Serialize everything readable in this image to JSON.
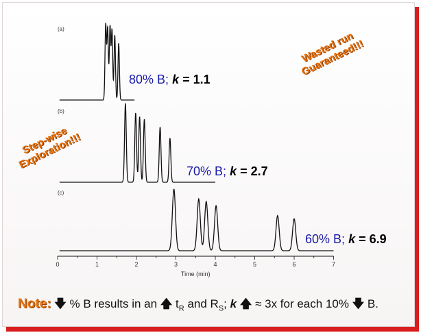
{
  "chart_data": {
    "type": "line",
    "xlabel": "Time (min)",
    "xlim": [
      0,
      7
    ],
    "xticks": [
      0,
      1,
      2,
      3,
      4,
      5,
      6,
      7
    ],
    "panels": [
      {
        "label": "(a)",
        "condition_pct": "80% B;",
        "k_symbol": "k",
        "k_value": "= 1.1",
        "peaks": [
          {
            "t": 1.22,
            "h": 1.0
          },
          {
            "t": 1.27,
            "h": 0.95
          },
          {
            "t": 1.33,
            "h": 0.97
          },
          {
            "t": 1.38,
            "h": 0.92
          },
          {
            "t": 1.45,
            "h": 0.86
          },
          {
            "t": 1.55,
            "h": 0.75
          }
        ],
        "width": 0.018
      },
      {
        "label": "(b)",
        "condition_pct": "70% B;",
        "k_symbol": "k",
        "k_value": "= 2.7",
        "peaks": [
          {
            "t": 1.72,
            "h": 1.0
          },
          {
            "t": 1.98,
            "h": 0.88
          },
          {
            "t": 2.08,
            "h": 0.83
          },
          {
            "t": 2.2,
            "h": 0.8
          },
          {
            "t": 2.6,
            "h": 0.7
          },
          {
            "t": 2.85,
            "h": 0.56
          }
        ],
        "width": 0.022
      },
      {
        "label": "(c)",
        "condition_pct": "60% B;",
        "k_symbol": "k",
        "k_value": "= 6.9",
        "peaks": [
          {
            "t": 2.95,
            "h": 1.0
          },
          {
            "t": 3.58,
            "h": 0.84
          },
          {
            "t": 3.77,
            "h": 0.8
          },
          {
            "t": 4.02,
            "h": 0.73
          },
          {
            "t": 5.58,
            "h": 0.57
          },
          {
            "t": 6.0,
            "h": 0.52
          }
        ],
        "width": 0.04
      }
    ]
  },
  "annotations": {
    "wasted_line1": "Wasted run",
    "wasted_line2": "Guaranteed!!!",
    "stepwise_line1": "Step-wise",
    "stepwise_line2": "Exploration!!!"
  },
  "note": {
    "label": "Note:",
    "text1": "% B results in an",
    "text2": "t",
    "sub_r": "R",
    "text3": "and R",
    "sub_s": "S",
    "text4": ";",
    "k": "k",
    "text5": "≈ 3x for each 10%",
    "text6": "B."
  },
  "colors": {
    "condition_text": "#1a1aa8",
    "stamp_orange": "#e8730c",
    "frame_shadow": "#d81e1e"
  }
}
